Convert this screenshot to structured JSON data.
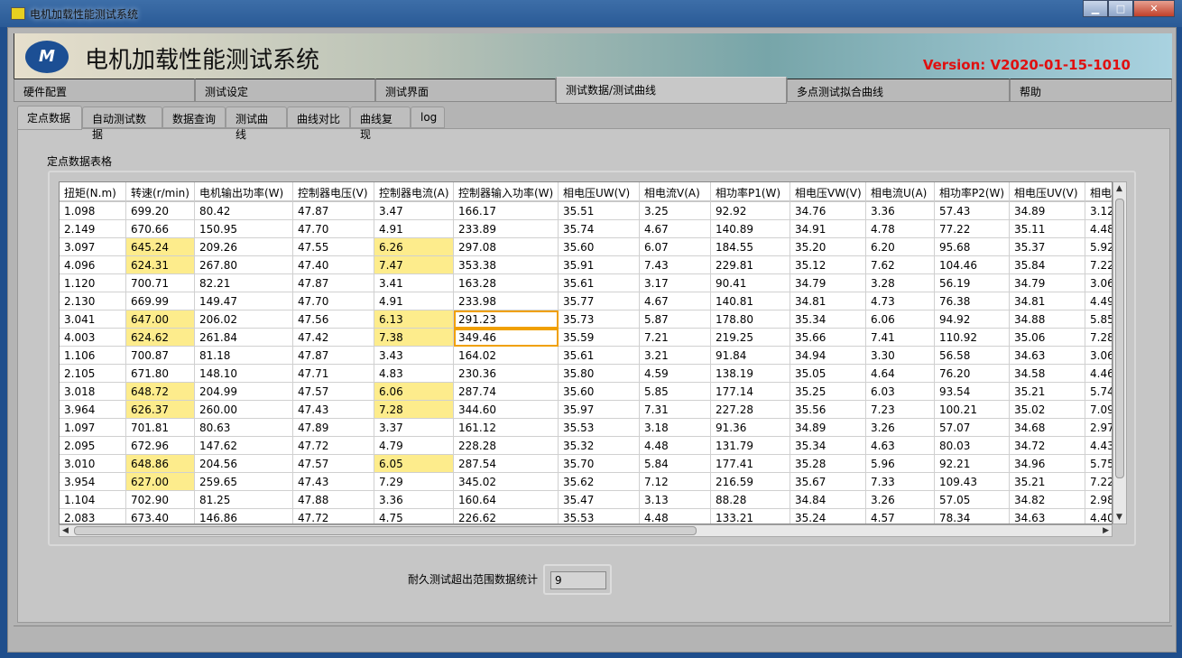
{
  "window": {
    "title": "电机加载性能测试系统",
    "minimize": "▁",
    "maximize": "□",
    "close": "✕"
  },
  "banner": {
    "logo_text": "M",
    "title": "电机加载性能测试系统",
    "version": "Version: V2020-01-15-1010",
    "version_color": "#e01010"
  },
  "main_tabs": [
    {
      "label": "硬件配置"
    },
    {
      "label": "测试设定"
    },
    {
      "label": "测试界面"
    },
    {
      "label": "测试数据/测试曲线",
      "active": true
    },
    {
      "label": "多点测试拟合曲线"
    },
    {
      "label": "帮助"
    }
  ],
  "sub_tabs": [
    {
      "label": "定点数据",
      "active": true
    },
    {
      "label": "自动测试数据"
    },
    {
      "label": "数据查询"
    },
    {
      "label": "测试曲线"
    },
    {
      "label": "曲线对比"
    },
    {
      "label": "曲线复现"
    },
    {
      "label": "log"
    }
  ],
  "table": {
    "label": "定点数据表格",
    "highlight_color": "#fdec8c",
    "columns": [
      "扭矩(N.m)",
      "转速(r/min)",
      "电机输出功率(W)",
      "控制器电压(V)",
      "控制器电流(A)",
      "控制器输入功率(W)",
      "相电压UW(V)",
      "相电流V(A)",
      "相功率P1(W)",
      "相电压VW(V)",
      "相电流U(A)",
      "相功率P2(W)",
      "相电压UV(V)",
      "相电"
    ],
    "rows": [
      [
        "1.098",
        "699.20",
        "80.42",
        "47.87",
        "3.47",
        "166.17",
        "35.51",
        "3.25",
        "92.92",
        "34.76",
        "3.36",
        "57.43",
        "34.89",
        "3.12"
      ],
      [
        "2.149",
        "670.66",
        "150.95",
        "47.70",
        "4.91",
        "233.89",
        "35.74",
        "4.67",
        "140.89",
        "34.91",
        "4.78",
        "77.22",
        "35.11",
        "4.48"
      ],
      [
        "3.097",
        "645.24",
        "209.26",
        "47.55",
        "6.26",
        "297.08",
        "35.60",
        "6.07",
        "184.55",
        "35.20",
        "6.20",
        "95.68",
        "35.37",
        "5.92"
      ],
      [
        "4.096",
        "624.31",
        "267.80",
        "47.40",
        "7.47",
        "353.38",
        "35.91",
        "7.43",
        "229.81",
        "35.12",
        "7.62",
        "104.46",
        "35.84",
        "7.22"
      ],
      [
        "1.120",
        "700.71",
        "82.21",
        "47.87",
        "3.41",
        "163.28",
        "35.61",
        "3.17",
        "90.41",
        "34.79",
        "3.28",
        "56.19",
        "34.79",
        "3.06"
      ],
      [
        "2.130",
        "669.99",
        "149.47",
        "47.70",
        "4.91",
        "233.98",
        "35.77",
        "4.67",
        "140.81",
        "34.81",
        "4.73",
        "76.38",
        "34.81",
        "4.49"
      ],
      [
        "3.041",
        "647.00",
        "206.02",
        "47.56",
        "6.13",
        "291.23",
        "35.73",
        "5.87",
        "178.80",
        "35.34",
        "6.06",
        "94.92",
        "34.88",
        "5.85"
      ],
      [
        "4.003",
        "624.62",
        "261.84",
        "47.42",
        "7.38",
        "349.46",
        "35.59",
        "7.21",
        "219.25",
        "35.66",
        "7.41",
        "110.92",
        "35.06",
        "7.28"
      ],
      [
        "1.106",
        "700.87",
        "81.18",
        "47.87",
        "3.43",
        "164.02",
        "35.61",
        "3.21",
        "91.84",
        "34.94",
        "3.30",
        "56.58",
        "34.63",
        "3.06"
      ],
      [
        "2.105",
        "671.80",
        "148.10",
        "47.71",
        "4.83",
        "230.36",
        "35.80",
        "4.59",
        "138.19",
        "35.05",
        "4.64",
        "76.20",
        "34.58",
        "4.46"
      ],
      [
        "3.018",
        "648.72",
        "204.99",
        "47.57",
        "6.06",
        "287.74",
        "35.60",
        "5.85",
        "177.14",
        "35.25",
        "6.03",
        "93.54",
        "35.21",
        "5.74"
      ],
      [
        "3.964",
        "626.37",
        "260.00",
        "47.43",
        "7.28",
        "344.60",
        "35.97",
        "7.31",
        "227.28",
        "35.56",
        "7.23",
        "100.21",
        "35.02",
        "7.09"
      ],
      [
        "1.097",
        "701.81",
        "80.63",
        "47.89",
        "3.37",
        "161.12",
        "35.53",
        "3.18",
        "91.36",
        "34.89",
        "3.26",
        "57.07",
        "34.68",
        "2.97"
      ],
      [
        "2.095",
        "672.96",
        "147.62",
        "47.72",
        "4.79",
        "228.28",
        "35.32",
        "4.48",
        "131.79",
        "35.34",
        "4.63",
        "80.03",
        "34.72",
        "4.43"
      ],
      [
        "3.010",
        "648.86",
        "204.56",
        "47.57",
        "6.05",
        "287.54",
        "35.70",
        "5.84",
        "177.41",
        "35.28",
        "5.96",
        "92.21",
        "34.96",
        "5.75"
      ],
      [
        "3.954",
        "627.00",
        "259.65",
        "47.43",
        "7.29",
        "345.02",
        "35.62",
        "7.12",
        "216.59",
        "35.67",
        "7.33",
        "109.43",
        "35.21",
        "7.22"
      ],
      [
        "1.104",
        "702.90",
        "81.25",
        "47.88",
        "3.36",
        "160.64",
        "35.47",
        "3.13",
        "88.28",
        "34.84",
        "3.26",
        "57.05",
        "34.82",
        "2.98"
      ],
      [
        "2.083",
        "673.40",
        "146.86",
        "47.72",
        "4.75",
        "226.62",
        "35.53",
        "4.48",
        "133.21",
        "35.24",
        "4.57",
        "78.34",
        "34.63",
        "4.40"
      ]
    ],
    "highlighted": [
      [
        2,
        1
      ],
      [
        3,
        1
      ],
      [
        6,
        1
      ],
      [
        7,
        1
      ],
      [
        10,
        1
      ],
      [
        11,
        1
      ],
      [
        14,
        1
      ],
      [
        15,
        1
      ],
      [
        2,
        4
      ],
      [
        3,
        4
      ],
      [
        6,
        4
      ],
      [
        7,
        4
      ],
      [
        10,
        4
      ],
      [
        11,
        4
      ],
      [
        14,
        4
      ]
    ],
    "selected": [
      [
        6,
        5
      ],
      [
        7,
        5
      ]
    ]
  },
  "counter": {
    "label": "耐久测试超出范围数据统计",
    "value": "9"
  }
}
